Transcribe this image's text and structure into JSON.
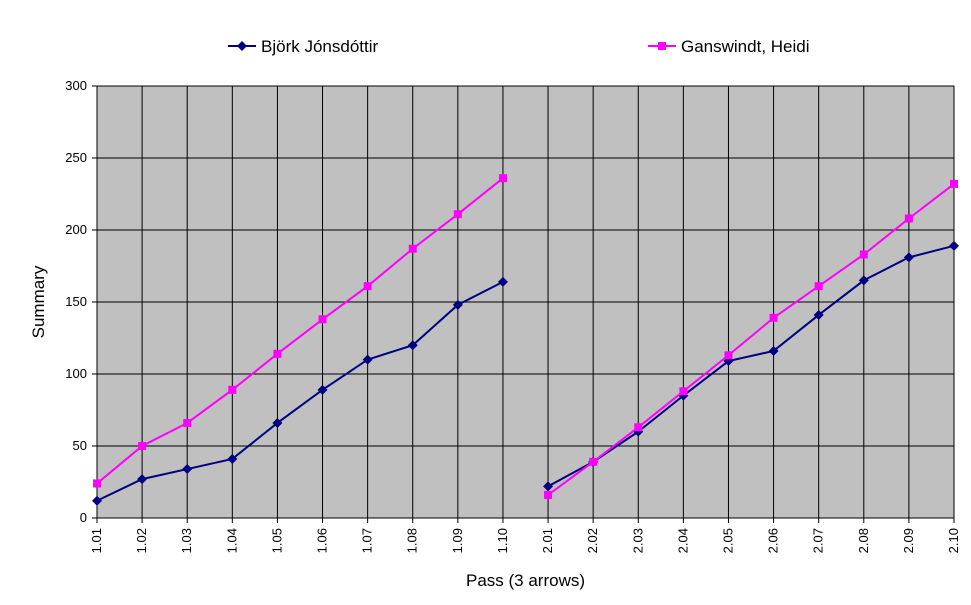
{
  "chart_data": {
    "type": "line",
    "title": "",
    "xlabel": "Pass (3 arrows)",
    "ylabel": "Summary",
    "ylim": [
      0,
      300
    ],
    "yticks": [
      0,
      50,
      100,
      150,
      200,
      250,
      300
    ],
    "grid": true,
    "legend_position": "top",
    "plot_background": "#c0c0c0",
    "categories": [
      "1.01",
      "1.02",
      "1.03",
      "1.04",
      "1.05",
      "1.06",
      "1.07",
      "1.08",
      "1.09",
      "1.10",
      "2.01",
      "2.02",
      "2.03",
      "2.04",
      "2.05",
      "2.06",
      "2.07",
      "2.08",
      "2.09",
      "2.10"
    ],
    "series": [
      {
        "name": "Björk Jónsdóttir",
        "color": "#000080",
        "marker": "diamond",
        "values": [
          12,
          27,
          34,
          41,
          66,
          89,
          110,
          120,
          148,
          164,
          22,
          39,
          60,
          85,
          109,
          116,
          141,
          165,
          181,
          189
        ]
      },
      {
        "name": "Ganswindt, Heidi",
        "color": "#ff00ff",
        "marker": "square",
        "values": [
          24,
          50,
          66,
          89,
          114,
          138,
          161,
          187,
          211,
          236,
          16,
          39,
          63,
          88,
          113,
          139,
          161,
          183,
          208,
          232
        ]
      }
    ],
    "segment_break_after": "1.10"
  }
}
